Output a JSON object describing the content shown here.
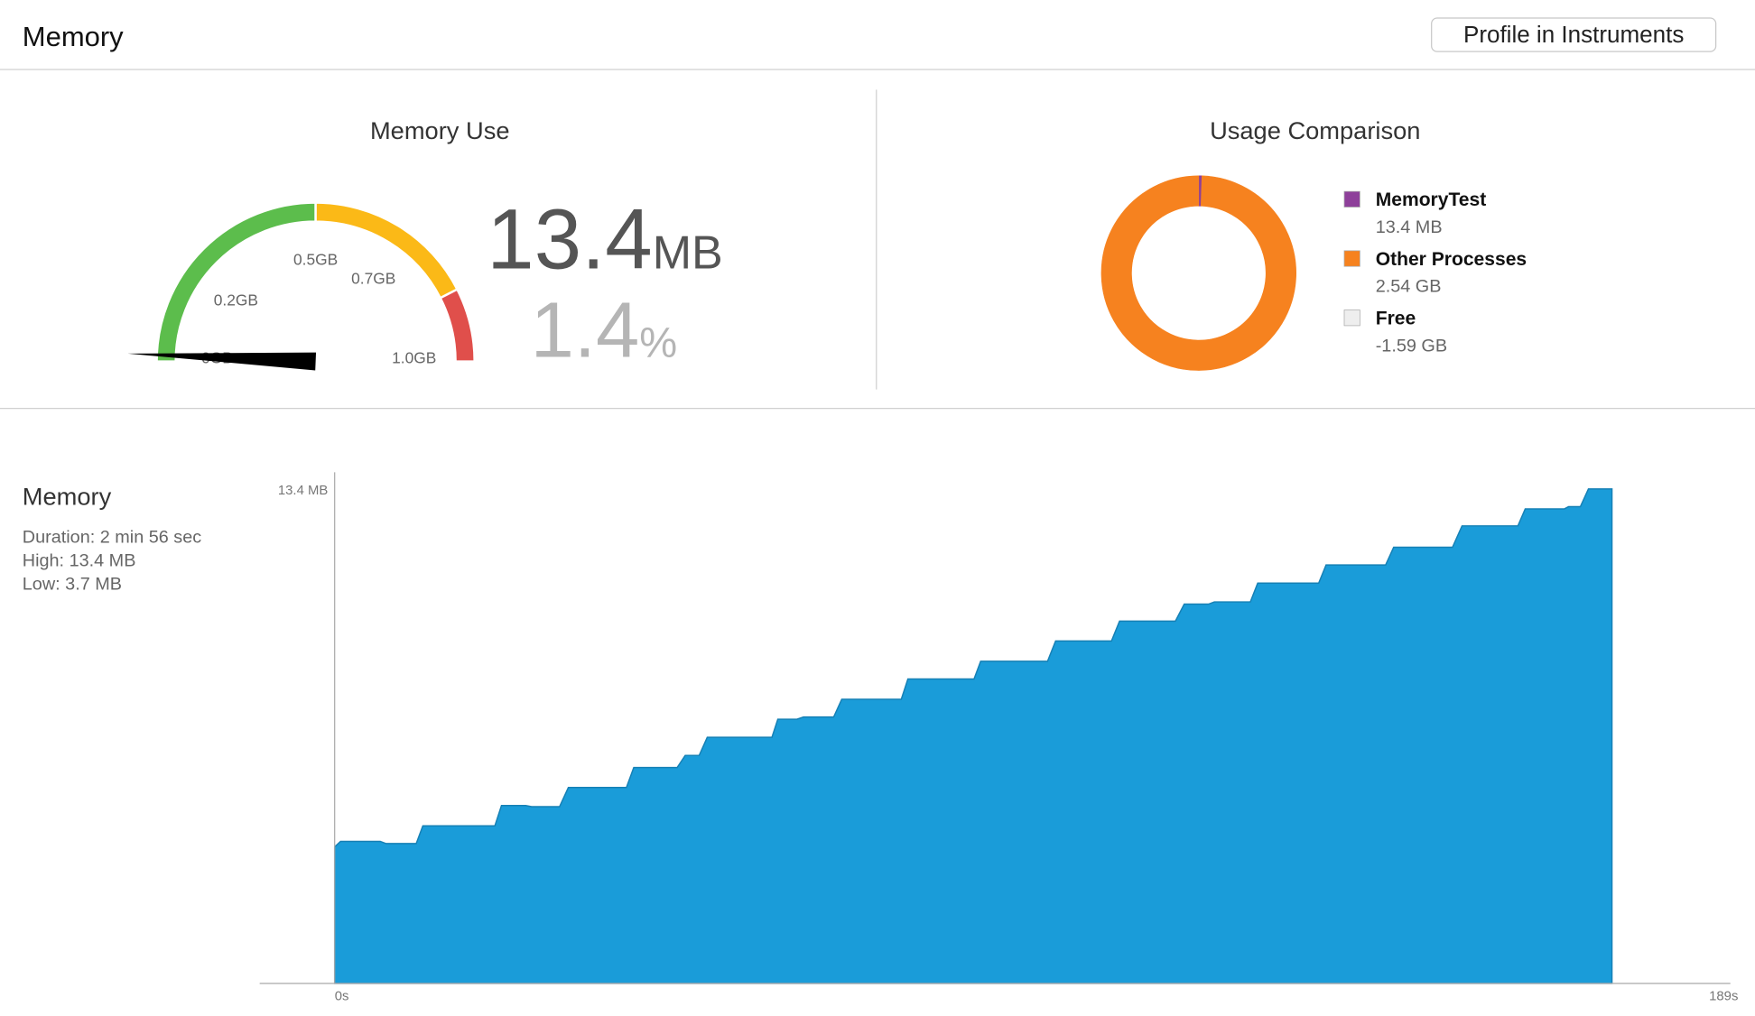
{
  "header": {
    "title": "Memory",
    "button": "Profile in Instruments"
  },
  "memory_use": {
    "title": "Memory Use",
    "readout": "13.4",
    "readout_unit": "MB",
    "percent": "1.4",
    "percent_unit": "%",
    "gauge": {
      "range": [
        0,
        1.0
      ],
      "value": 0.0134,
      "needle_color": "#000000",
      "ticks": [
        {
          "value": 0,
          "label": "0GB"
        },
        {
          "value": 0.2,
          "label": "0.2GB"
        },
        {
          "value": 0.5,
          "label": "0.5GB"
        },
        {
          "value": 0.7,
          "label": "0.7GB"
        },
        {
          "value": 1.0,
          "label": "1.0GB"
        }
      ],
      "bands": [
        {
          "from": 0,
          "to": 0.5,
          "color": "#5cbd4c"
        },
        {
          "from": 0.5,
          "to": 0.85,
          "color": "#fbb917"
        },
        {
          "from": 0.85,
          "to": 1.0,
          "color": "#e04f4b"
        }
      ]
    }
  },
  "usage_comparison": {
    "type": "pie",
    "title": "Usage Comparison",
    "series": [
      {
        "name": "MemoryTest",
        "value": 0.0134,
        "value_label": "13.4 MB",
        "color": "#8e3f9a"
      },
      {
        "name": "Other Processes",
        "value": 2.54,
        "value_label": "2.54 GB",
        "color": "#f6821f"
      },
      {
        "name": "Free",
        "value": -1.59,
        "value_label": "-1.59 GB",
        "color": "#eeeeee"
      }
    ]
  },
  "memory_chart": {
    "type": "area",
    "title": "Memory",
    "stats": [
      "Duration: 2 min 56 sec",
      "High: 13.4 MB",
      "Low: 3.7 MB"
    ],
    "x": [
      0,
      0.8,
      6.2,
      7.0,
      11.1,
      12.0,
      21.8,
      22.7,
      26.0,
      26.8,
      30.6,
      31.8,
      39.7,
      40.7,
      46.6,
      47.7,
      49.6,
      50.7,
      59.5,
      60.3,
      62.9,
      63.8,
      67.9,
      69.0,
      77.1,
      78.0,
      87.0,
      87.9,
      97.0,
      98.1,
      105.7,
      106.8,
      114.4,
      115.6,
      118.9,
      119.7,
      124.6,
      125.6,
      133.9,
      134.9,
      143.0,
      144.1,
      152.1,
      153.4,
      161.0,
      162.0,
      167.3,
      167.9,
      169.5,
      170.6,
      173.8
    ],
    "values": [
      3.7,
      3.85,
      3.85,
      3.79,
      3.79,
      4.27,
      4.27,
      4.82,
      4.82,
      4.79,
      4.79,
      5.31,
      5.31,
      5.85,
      5.85,
      6.18,
      6.18,
      6.67,
      6.67,
      7.16,
      7.16,
      7.22,
      7.22,
      7.7,
      7.7,
      8.25,
      8.25,
      8.73,
      8.73,
      9.28,
      9.28,
      9.82,
      9.82,
      10.28,
      10.28,
      10.34,
      10.34,
      10.85,
      10.85,
      11.34,
      11.34,
      11.82,
      11.82,
      12.4,
      12.4,
      12.86,
      12.86,
      12.92,
      12.92,
      13.4,
      13.4
    ],
    "xlim": [
      0,
      189
    ],
    "xticks": [
      {
        "value": 0,
        "label": "0s"
      },
      {
        "value": 189,
        "label": "189s"
      }
    ],
    "ylim": [
      0,
      13.4
    ],
    "yticks": [
      {
        "value": 13.4,
        "label": "13.4 MB"
      }
    ],
    "color": "#1a9cd9",
    "line_color": "#1680b5"
  }
}
